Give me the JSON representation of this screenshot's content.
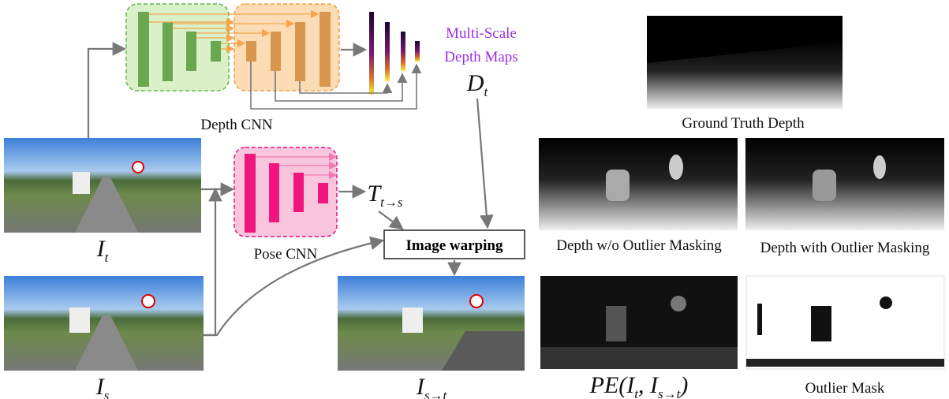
{
  "depth_cnn": {
    "label": "Depth CNN"
  },
  "depth_maps": {
    "label_lines": [
      "Multi-Scale",
      "Depth Maps"
    ],
    "symbol": [
      "D",
      "t"
    ]
  },
  "pose_cnn": {
    "label": "Pose CNN"
  },
  "pose_output": [
    "T",
    "t→s"
  ],
  "target_image": [
    "I",
    "t"
  ],
  "source_image": [
    "I",
    "s"
  ],
  "warping": {
    "label": "Image warping"
  },
  "warped_image": [
    "I",
    "s→t"
  ],
  "panels": [
    {
      "label": "Ground Truth Depth"
    },
    {
      "label": "Depth w/o Outlier Masking"
    },
    {
      "label": "Depth with Outlier Masking"
    },
    {
      "label": [
        "PE(I",
        "t",
        ", I",
        "s→t",
        ")"
      ]
    },
    {
      "label": "Outlier Mask"
    }
  ]
}
